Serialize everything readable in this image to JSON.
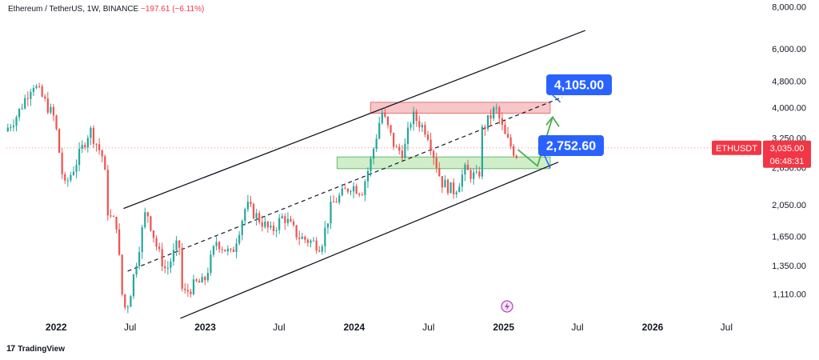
{
  "header": {
    "symbol": "Ethereum / TetherUS, 1W, BINANCE",
    "change": "−197.61 (−6.11%)"
  },
  "brand": {
    "name": "TradingView",
    "icon": "tradingview-logo-icon"
  },
  "colors": {
    "up": "#26a69a",
    "down": "#ef5350",
    "callout": "#2962ff",
    "tag": "#f23645",
    "resistance": "#f7c6c9",
    "support": "#cfeec9",
    "arrow": "#4caf50"
  },
  "chart_data": {
    "type": "candlestick",
    "title": "Ethereum / TetherUS, 1W, BINANCE",
    "y_scale": "log",
    "ylim": [
      950,
      8200
    ],
    "y_ticks": [
      "8,000.00",
      "6,000.00",
      "4,800.00",
      "4,000.00",
      "3,250.00",
      "2,650.00",
      "2,050.00",
      "1,650.00",
      "1,350.00",
      "1,110.00"
    ],
    "x_ticks": [
      "2022",
      "Jul",
      "2023",
      "Jul",
      "2024",
      "Jul",
      "2025",
      "Jul",
      "2026",
      "Jul"
    ],
    "path": [
      [
        "2021-09-01",
        3400
      ],
      [
        "2021-10-01",
        3800
      ],
      [
        "2021-11-08",
        4750
      ],
      [
        "2021-12-01",
        4300
      ],
      [
        "2022-01-01",
        3700
      ],
      [
        "2022-01-24",
        2300
      ],
      [
        "2022-02-20",
        2700
      ],
      [
        "2022-03-28",
        3450
      ],
      [
        "2022-05-01",
        2800
      ],
      [
        "2022-05-12",
        1900
      ],
      [
        "2022-06-01",
        1800
      ],
      [
        "2022-06-18",
        1000
      ],
      [
        "2022-07-01",
        1050
      ],
      [
        "2022-08-13",
        2000
      ],
      [
        "2022-09-10",
        1500
      ],
      [
        "2022-10-01",
        1300
      ],
      [
        "2022-11-01",
        1600
      ],
      [
        "2022-11-10",
        1100
      ],
      [
        "2022-12-15",
        1200
      ],
      [
        "2023-01-01",
        1200
      ],
      [
        "2023-02-01",
        1600
      ],
      [
        "2023-03-10",
        1450
      ],
      [
        "2023-04-15",
        2050
      ],
      [
        "2023-06-15",
        1700
      ],
      [
        "2023-07-15",
        1900
      ],
      [
        "2023-08-20",
        1650
      ],
      [
        "2023-10-15",
        1550
      ],
      [
        "2023-11-10",
        2050
      ],
      [
        "2023-12-28",
        2350
      ],
      [
        "2024-01-23",
        2250
      ],
      [
        "2024-02-15",
        2800
      ],
      [
        "2024-03-12",
        3900
      ],
      [
        "2024-04-15",
        3000
      ],
      [
        "2024-05-05",
        2950
      ],
      [
        "2024-05-25",
        3800
      ],
      [
        "2024-07-01",
        3400
      ],
      [
        "2024-08-05",
        2400
      ],
      [
        "2024-09-06",
        2250
      ],
      [
        "2024-10-01",
        2600
      ],
      [
        "2024-11-05",
        2450
      ],
      [
        "2024-11-12",
        3400
      ],
      [
        "2024-12-16",
        4000
      ],
      [
        "2025-01-07",
        3300
      ],
      [
        "2025-02-03",
        2900
      ]
    ],
    "annotations": {
      "channel_upper": [
        [
          "2022-06-15",
          2000
        ],
        [
          "2025-07-20",
          6800
        ]
      ],
      "channel_lower": [
        [
          "2022-11-01",
          940
        ],
        [
          "2025-05-15",
          2750
        ]
      ],
      "channel_mid": [
        [
          "2022-06-25",
          1300
        ],
        [
          "2025-05-25",
          4300
        ]
      ],
      "resistance_zone": {
        "x": [
          "2024-02-10",
          "2025-04-25"
        ],
        "y": [
          3850,
          4150
        ]
      },
      "support_zone": {
        "x": [
          "2023-11-20",
          "2025-04-25"
        ],
        "y": [
          2630,
          2850
        ]
      },
      "projection": [
        [
          "2025-02-05",
          3000
        ],
        [
          "2025-03-25",
          2680
        ],
        [
          "2025-05-01",
          3750
        ]
      ],
      "target_label": "4,105.00",
      "support_label": "2,752.60",
      "last_price_label": "3,035.00",
      "last_price": 3035,
      "countdown": "06:48:31",
      "ticker_tag": "ETHUSDT"
    }
  }
}
